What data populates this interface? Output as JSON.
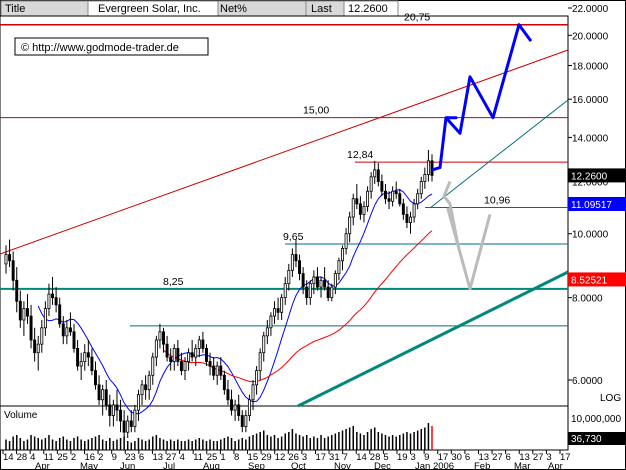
{
  "header": {
    "field1": "Title",
    "name": "Evergreen Solar, Inc.",
    "field2": "Net%",
    "field3": "Last",
    "last_value": "12.2600"
  },
  "copyright": "© http://www.godmode-trader.de",
  "volume_label": "Volume",
  "log_label": "LOG",
  "colors": {
    "candle": "#000000",
    "ma_blue": "#0000ff",
    "ma_red": "#ff0000",
    "trend_red": "#cc0000",
    "trend_teal": "#006f7f",
    "support_teal": "#008878",
    "forecast_blue": "#0000ff",
    "forecast_gray": "#bbbbbb",
    "price_badge": "#000000",
    "badge_blue": "#0000ff",
    "badge_red": "#ff0000"
  },
  "chart_data": {
    "type": "candlestick",
    "y_scale": "log",
    "ylim": [
      4.8,
      22
    ],
    "y_ticks": [
      "22.0000",
      "20.0000",
      "18.0000",
      "16.0000",
      "14.0000",
      "12.0000",
      "10.0000",
      "8.0000",
      "6.0000"
    ],
    "y_tick_values": [
      22,
      20,
      18,
      16,
      14,
      12,
      10,
      8,
      6
    ],
    "date_ticks_top": [
      "14",
      "28",
      "4",
      "11",
      "25",
      "2",
      "16",
      "2",
      "9",
      "23",
      "6",
      "13",
      "27",
      "4",
      "11",
      "25",
      "1",
      "8",
      "15",
      "29",
      "12",
      "26",
      "3",
      "17",
      "31",
      "7",
      "14",
      "28",
      "5",
      "19",
      "3",
      "9",
      "17",
      "30",
      "6",
      "13",
      "27",
      "6",
      "13",
      "27",
      "3",
      "17"
    ],
    "month_labels": [
      "Apr",
      "May",
      "Jun",
      "Jul",
      "Aug",
      "Sep",
      "Oct",
      "Nov",
      "Dec",
      "Jan 2006",
      "Feb",
      "Mar",
      "Apr"
    ],
    "annotations": [
      {
        "text": "20,75",
        "price": 20.75
      },
      {
        "text": "15,00",
        "price": 15.0
      },
      {
        "text": "12,84",
        "price": 12.84
      },
      {
        "text": "10,96",
        "price": 10.96
      },
      {
        "text": "9,65",
        "price": 9.65
      },
      {
        "text": "8,25",
        "price": 8.25
      }
    ],
    "horizontal_levels": [
      20.75,
      15.0,
      12.84,
      10.96,
      9.65,
      8.25,
      7.25
    ],
    "price_badges": [
      {
        "text": "12.2600",
        "price": 12.26,
        "color": "#000000"
      },
      {
        "text": "11.09517",
        "price": 11.095,
        "color": "#0000ff"
      },
      {
        "text": "8.52521",
        "price": 8.525,
        "color": "#ff0000"
      }
    ],
    "volume_axis": [
      "10,000,000",
      "36,730"
    ],
    "prices": [
      [
        9.0,
        9.6,
        8.7,
        9.3
      ],
      [
        9.3,
        9.8,
        8.9,
        9.1
      ],
      [
        9.1,
        9.4,
        8.2,
        8.5
      ],
      [
        8.5,
        8.9,
        7.6,
        7.9
      ],
      [
        7.9,
        8.2,
        7.2,
        7.4
      ],
      [
        7.4,
        7.9,
        7.0,
        7.7
      ],
      [
        7.7,
        8.1,
        7.3,
        7.5
      ],
      [
        7.5,
        7.8,
        6.7,
        6.9
      ],
      [
        6.9,
        7.2,
        6.4,
        6.6
      ],
      [
        6.6,
        7.0,
        6.2,
        6.8
      ],
      [
        6.8,
        7.4,
        6.6,
        7.2
      ],
      [
        7.2,
        7.9,
        7.0,
        7.7
      ],
      [
        7.7,
        8.4,
        7.5,
        8.1
      ],
      [
        8.1,
        8.6,
        7.8,
        8.0
      ],
      [
        8.0,
        8.3,
        7.6,
        7.8
      ],
      [
        7.8,
        8.0,
        7.2,
        7.3
      ],
      [
        7.3,
        7.5,
        6.8,
        7.0
      ],
      [
        7.0,
        7.4,
        6.8,
        7.2
      ],
      [
        7.2,
        7.6,
        7.0,
        7.1
      ],
      [
        7.1,
        7.3,
        6.6,
        6.7
      ],
      [
        6.7,
        6.9,
        6.2,
        6.3
      ],
      [
        6.3,
        6.6,
        6.0,
        6.4
      ],
      [
        6.4,
        6.8,
        6.2,
        6.6
      ],
      [
        6.6,
        6.9,
        6.3,
        6.5
      ],
      [
        6.5,
        6.7,
        6.1,
        6.2
      ],
      [
        6.2,
        6.4,
        5.8,
        5.9
      ],
      [
        5.9,
        6.1,
        5.5,
        5.6
      ],
      [
        5.6,
        5.9,
        5.3,
        5.8
      ],
      [
        5.8,
        6.0,
        5.4,
        5.5
      ],
      [
        5.5,
        5.7,
        5.1,
        5.3
      ],
      [
        5.3,
        5.6,
        5.1,
        5.5
      ],
      [
        5.5,
        5.8,
        5.2,
        5.4
      ],
      [
        5.4,
        5.6,
        5.0,
        5.2
      ],
      [
        5.2,
        5.4,
        4.9,
        5.0
      ],
      [
        5.0,
        5.3,
        4.9,
        5.2
      ],
      [
        5.2,
        5.4,
        5.0,
        5.1
      ],
      [
        5.1,
        5.5,
        5.0,
        5.4
      ],
      [
        5.4,
        5.8,
        5.2,
        5.7
      ],
      [
        5.7,
        6.0,
        5.5,
        5.9
      ],
      [
        5.9,
        6.1,
        5.6,
        5.8
      ],
      [
        5.8,
        6.2,
        5.6,
        6.1
      ],
      [
        6.1,
        6.6,
        5.9,
        6.5
      ],
      [
        6.5,
        7.0,
        6.3,
        6.9
      ],
      [
        6.9,
        7.3,
        6.7,
        7.1
      ],
      [
        7.1,
        7.2,
        6.6,
        6.8
      ],
      [
        6.8,
        7.0,
        6.4,
        6.5
      ],
      [
        6.5,
        6.7,
        6.2,
        6.4
      ],
      [
        6.4,
        6.8,
        6.2,
        6.7
      ],
      [
        6.7,
        6.9,
        6.3,
        6.4
      ],
      [
        6.4,
        6.6,
        6.1,
        6.2
      ],
      [
        6.2,
        6.5,
        6.0,
        6.4
      ],
      [
        6.4,
        6.7,
        6.2,
        6.6
      ],
      [
        6.6,
        6.9,
        6.4,
        6.5
      ],
      [
        6.5,
        6.8,
        6.3,
        6.7
      ],
      [
        6.7,
        7.0,
        6.5,
        6.9
      ],
      [
        6.9,
        7.1,
        6.6,
        6.7
      ],
      [
        6.7,
        6.8,
        6.3,
        6.4
      ],
      [
        6.4,
        6.6,
        6.1,
        6.3
      ],
      [
        6.3,
        6.5,
        6.0,
        6.1
      ],
      [
        6.1,
        6.4,
        5.9,
        6.3
      ],
      [
        6.3,
        6.5,
        6.0,
        6.1
      ],
      [
        6.1,
        6.2,
        5.7,
        5.8
      ],
      [
        5.8,
        6.0,
        5.5,
        5.6
      ],
      [
        5.6,
        5.8,
        5.3,
        5.4
      ],
      [
        5.4,
        5.6,
        5.2,
        5.5
      ],
      [
        5.5,
        5.7,
        5.2,
        5.3
      ],
      [
        5.3,
        5.4,
        5.0,
        5.1
      ],
      [
        5.1,
        5.4,
        5.0,
        5.3
      ],
      [
        5.3,
        5.7,
        5.2,
        5.6
      ],
      [
        5.6,
        6.0,
        5.4,
        5.9
      ],
      [
        5.9,
        6.3,
        5.7,
        6.2
      ],
      [
        6.2,
        6.7,
        6.0,
        6.6
      ],
      [
        6.6,
        7.1,
        6.4,
        7.0
      ],
      [
        7.0,
        7.4,
        6.8,
        7.2
      ],
      [
        7.2,
        7.6,
        7.0,
        7.5
      ],
      [
        7.5,
        7.9,
        7.3,
        7.7
      ],
      [
        7.7,
        8.0,
        7.4,
        7.6
      ],
      [
        7.6,
        8.1,
        7.4,
        8.0
      ],
      [
        8.0,
        8.6,
        7.8,
        8.4
      ],
      [
        8.4,
        9.0,
        8.2,
        8.8
      ],
      [
        8.8,
        9.5,
        8.6,
        9.3
      ],
      [
        9.3,
        9.8,
        8.9,
        9.1
      ],
      [
        9.1,
        9.3,
        8.5,
        8.7
      ],
      [
        8.7,
        8.9,
        8.1,
        8.3
      ],
      [
        8.3,
        8.5,
        7.8,
        8.0
      ],
      [
        8.0,
        8.5,
        7.8,
        8.4
      ],
      [
        8.4,
        8.8,
        8.1,
        8.6
      ],
      [
        8.6,
        8.9,
        8.2,
        8.3
      ],
      [
        8.3,
        8.6,
        8.0,
        8.5
      ],
      [
        8.5,
        8.9,
        8.2,
        8.3
      ],
      [
        8.3,
        8.5,
        7.9,
        8.0
      ],
      [
        8.0,
        8.4,
        7.9,
        8.3
      ],
      [
        8.3,
        8.8,
        8.1,
        8.7
      ],
      [
        8.7,
        9.2,
        8.5,
        9.1
      ],
      [
        9.1,
        9.6,
        8.8,
        9.5
      ],
      [
        9.5,
        10.2,
        9.3,
        10.0
      ],
      [
        10.0,
        10.8,
        9.7,
        10.6
      ],
      [
        10.6,
        11.5,
        10.3,
        11.3
      ],
      [
        11.3,
        11.9,
        10.9,
        11.1
      ],
      [
        11.1,
        11.4,
        10.5,
        10.7
      ],
      [
        10.7,
        11.2,
        10.4,
        11.0
      ],
      [
        11.0,
        11.8,
        10.8,
        11.6
      ],
      [
        11.6,
        12.4,
        11.3,
        12.2
      ],
      [
        12.2,
        12.9,
        11.9,
        12.5
      ],
      [
        12.5,
        12.8,
        11.8,
        12.0
      ],
      [
        12.0,
        12.3,
        11.4,
        11.6
      ],
      [
        11.6,
        11.9,
        11.1,
        11.3
      ],
      [
        11.3,
        11.6,
        10.9,
        11.2
      ],
      [
        11.2,
        11.8,
        11.0,
        11.6
      ],
      [
        11.6,
        12.0,
        11.3,
        11.5
      ],
      [
        11.5,
        11.7,
        11.0,
        11.1
      ],
      [
        11.1,
        11.3,
        10.5,
        10.7
      ],
      [
        10.7,
        11.0,
        10.2,
        10.4
      ],
      [
        10.4,
        10.8,
        10.0,
        10.6
      ],
      [
        10.6,
        11.3,
        10.4,
        11.1
      ],
      [
        11.1,
        11.7,
        10.9,
        11.5
      ],
      [
        11.5,
        12.2,
        11.3,
        12.0
      ],
      [
        12.0,
        12.6,
        11.7,
        12.3
      ],
      [
        12.3,
        13.4,
        12.0,
        12.9
      ],
      [
        12.9,
        13.2,
        12.0,
        12.26
      ]
    ],
    "volume": [
      0.35,
      0.3,
      0.45,
      0.5,
      0.4,
      0.3,
      0.35,
      0.5,
      0.45,
      0.4,
      0.35,
      0.4,
      0.5,
      0.35,
      0.3,
      0.4,
      0.45,
      0.35,
      0.3,
      0.4,
      0.45,
      0.35,
      0.3,
      0.35,
      0.4,
      0.45,
      0.5,
      0.35,
      0.3,
      0.4,
      0.3,
      0.35,
      0.4,
      0.45,
      0.3,
      0.25,
      0.3,
      0.4,
      0.35,
      0.3,
      0.35,
      0.45,
      0.5,
      0.4,
      0.35,
      0.3,
      0.35,
      0.3,
      0.35,
      0.3,
      0.3,
      0.35,
      0.3,
      0.35,
      0.4,
      0.35,
      0.3,
      0.35,
      0.3,
      0.3,
      0.35,
      0.4,
      0.45,
      0.4,
      0.3,
      0.35,
      0.4,
      0.35,
      0.45,
      0.5,
      0.55,
      0.6,
      0.65,
      0.5,
      0.45,
      0.5,
      0.4,
      0.45,
      0.55,
      0.6,
      0.7,
      0.55,
      0.5,
      0.45,
      0.5,
      0.4,
      0.45,
      0.4,
      0.5,
      0.4,
      0.45,
      0.5,
      0.55,
      0.6,
      0.65,
      0.7,
      0.75,
      0.8,
      0.6,
      0.55,
      0.5,
      0.6,
      0.7,
      0.75,
      0.6,
      0.55,
      0.5,
      0.45,
      0.5,
      0.45,
      0.5,
      0.55,
      0.6,
      0.55,
      0.6,
      0.65,
      0.7,
      0.75,
      0.9,
      0.8
    ]
  }
}
